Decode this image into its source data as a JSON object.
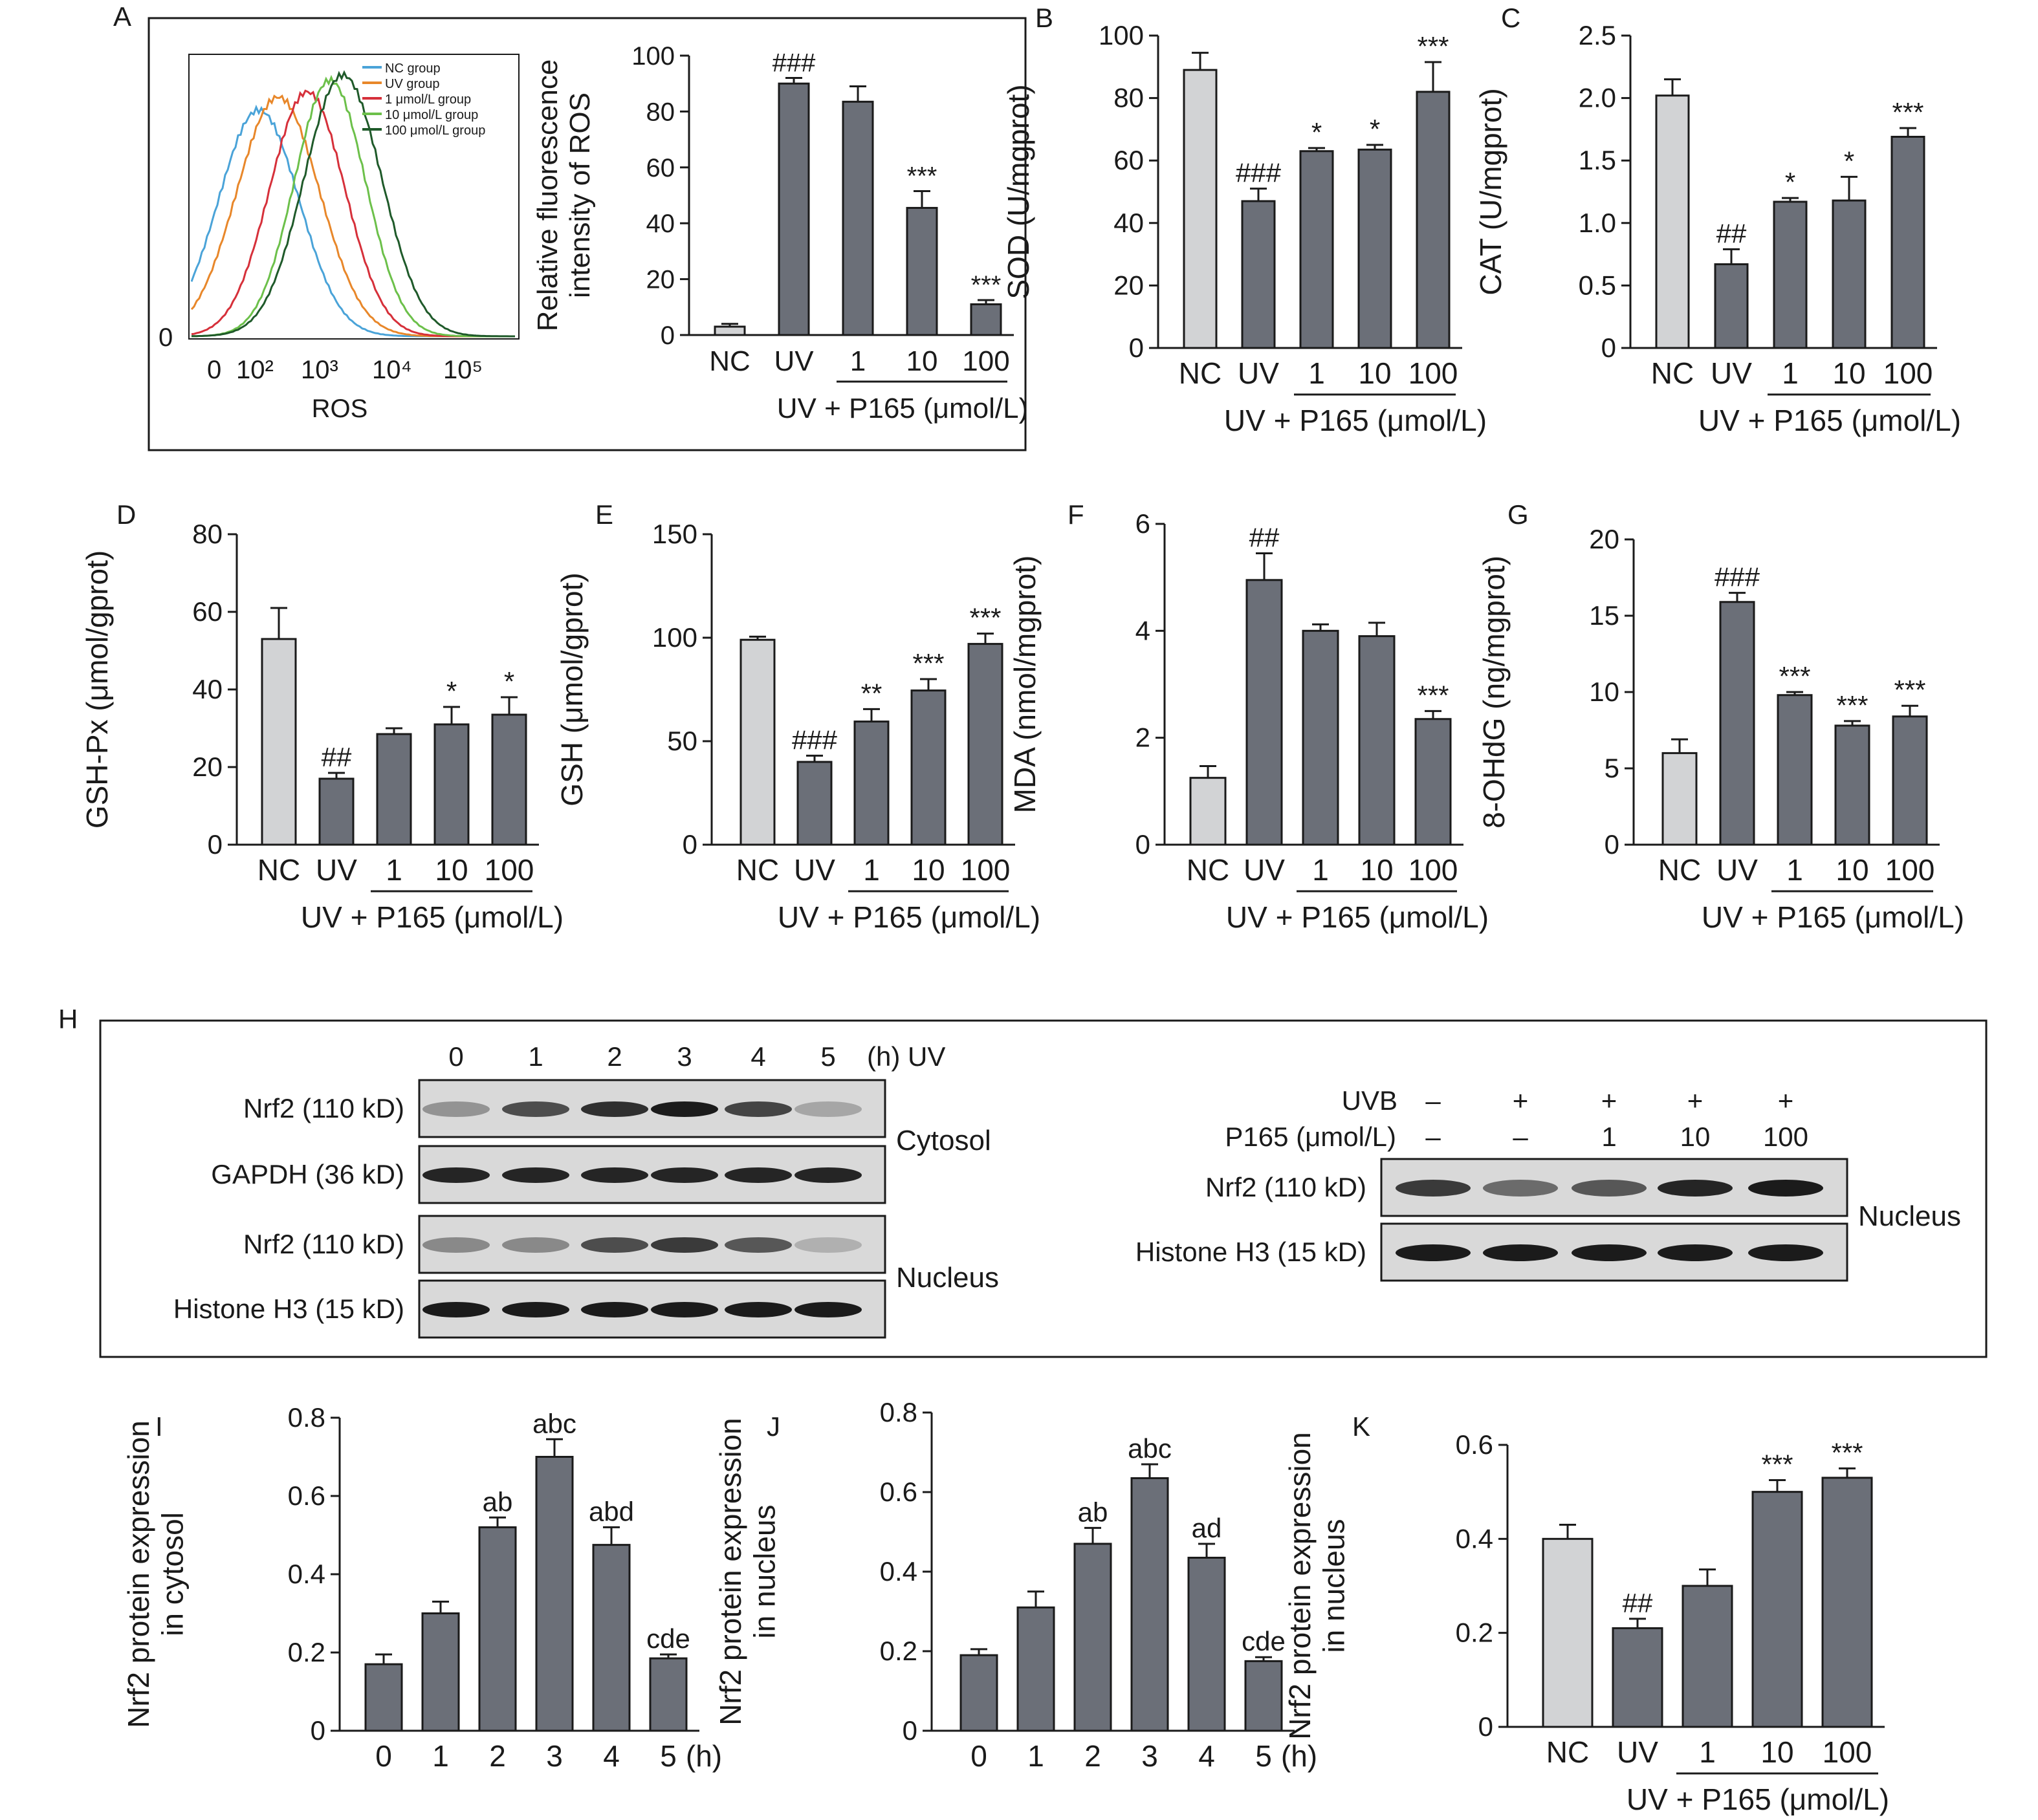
{
  "colors": {
    "bar_dark": "#6b6f78",
    "bar_light": "#d2d3d5",
    "axis": "#1a1a1a",
    "nc_line": "#4aa3d8",
    "uv_line": "#e8872a",
    "low_line": "#d6303a",
    "mid_line": "#6cc04a",
    "high_line": "#1f5a2a"
  },
  "panel_A": {
    "letter": "A",
    "histogram": {
      "legend": [
        "NC group",
        "UV group",
        "1 μmol/L group",
        "10 μmol/L group",
        "100 μmol/L group"
      ],
      "xlabel": "ROS",
      "xticks": [
        "0",
        "10²",
        "10³",
        "10⁴",
        "10⁵"
      ],
      "yzero": "0"
    }
  },
  "group_label": "UV + P165 (μmol/L)",
  "western": {
    "letter": "H",
    "left": {
      "lanes": [
        "0",
        "1",
        "2",
        "3",
        "4",
        "5"
      ],
      "lane_unit": "(h) UV",
      "rows": [
        "Nrf2 (110 kD)",
        "GAPDH (36 kD)",
        "Nrf2 (110 kD)",
        "Histone H3 (15 kD)"
      ],
      "compartments": [
        "Cytosol",
        "Nucleus"
      ]
    },
    "right": {
      "uvb_label": "UVB",
      "uvb": [
        "–",
        "+",
        "+",
        "+",
        "+"
      ],
      "p165_label": "P165 (μmol/L)",
      "p165": [
        "–",
        "–",
        "1",
        "10",
        "100"
      ],
      "rows": [
        "Nrf2 (110 kD)",
        "Histone H3 (15 kD)"
      ],
      "compartment": "Nucleus"
    }
  },
  "chart_data": [
    {
      "id": "A-bar",
      "type": "bar",
      "letter": "",
      "categories": [
        "NC",
        "UV",
        "1",
        "10",
        "100"
      ],
      "values": [
        3,
        90,
        83.5,
        45.5,
        11
      ],
      "errors": [
        1,
        2,
        5.5,
        6,
        1.5
      ],
      "annotations": [
        "",
        "###",
        "",
        "***",
        "***"
      ],
      "ylabel": [
        "Relative fluorescence",
        "intensity of ROS"
      ],
      "ylim": [
        0,
        100
      ],
      "yticks": [
        0,
        20,
        40,
        60,
        80,
        100
      ],
      "light_first": true,
      "group_label": "UV + P165 (μmol/L)"
    },
    {
      "id": "B",
      "type": "bar",
      "letter": "B",
      "categories": [
        "NC",
        "UV",
        "1",
        "10",
        "100"
      ],
      "values": [
        89,
        47,
        63,
        63.5,
        82
      ],
      "errors": [
        5.5,
        4,
        1,
        1.5,
        9.5
      ],
      "annotations": [
        "",
        "###",
        "*",
        "*",
        "***"
      ],
      "ylabel": [
        "SOD (U/mgprot)"
      ],
      "ylim": [
        0,
        100
      ],
      "yticks": [
        0,
        20,
        40,
        60,
        80,
        100
      ],
      "light_first": true,
      "group_label": "UV + P165 (μmol/L)"
    },
    {
      "id": "C",
      "type": "bar",
      "letter": "C",
      "categories": [
        "NC",
        "UV",
        "1",
        "10",
        "100"
      ],
      "values": [
        2.02,
        0.67,
        1.17,
        1.18,
        1.69
      ],
      "errors": [
        0.13,
        0.12,
        0.03,
        0.19,
        0.07
      ],
      "annotations": [
        "",
        "##",
        "*",
        "*",
        "***"
      ],
      "ylabel": [
        "CAT (U/mgprot)"
      ],
      "ylim": [
        0,
        2.5
      ],
      "yticks": [
        "0",
        "0.5",
        "1.0",
        "1.5",
        "2.0",
        "2.5"
      ],
      "light_first": true,
      "group_label": "UV + P165 (μmol/L)"
    },
    {
      "id": "D",
      "type": "bar",
      "letter": "D",
      "categories": [
        "NC",
        "UV",
        "1",
        "10",
        "100"
      ],
      "values": [
        53,
        17,
        28.5,
        31,
        33.5
      ],
      "errors": [
        8,
        1.5,
        1.5,
        4.5,
        4.5
      ],
      "annotations": [
        "",
        "##",
        "",
        "*",
        "*"
      ],
      "ylabel": [
        "GSH-Px (μmol/gprot)"
      ],
      "ylim": [
        0,
        80
      ],
      "yticks": [
        0,
        20,
        40,
        60,
        80
      ],
      "light_first": true,
      "group_label": "UV + P165 (μmol/L)"
    },
    {
      "id": "E",
      "type": "bar",
      "letter": "E",
      "categories": [
        "NC",
        "UV",
        "1",
        "10",
        "100"
      ],
      "values": [
        99,
        40,
        59.5,
        74.5,
        97
      ],
      "errors": [
        1.5,
        3,
        6,
        5.5,
        5
      ],
      "annotations": [
        "",
        "###",
        "**",
        "***",
        "***"
      ],
      "ylabel": [
        "GSH (μmol/gprot)"
      ],
      "ylim": [
        0,
        150
      ],
      "yticks": [
        0,
        50,
        100,
        150
      ],
      "light_first": true,
      "group_label": "UV + P165 (μmol/L)"
    },
    {
      "id": "F",
      "type": "bar",
      "letter": "F",
      "categories": [
        "NC",
        "UV",
        "1",
        "10",
        "100"
      ],
      "values": [
        1.25,
        4.95,
        4.0,
        3.9,
        2.35
      ],
      "errors": [
        0.22,
        0.5,
        0.12,
        0.25,
        0.15
      ],
      "annotations": [
        "",
        "##",
        "",
        "",
        "***"
      ],
      "ylabel": [
        "MDA (nmol/mgprot)"
      ],
      "ylim": [
        0,
        6
      ],
      "yticks": [
        0,
        2,
        4,
        6
      ],
      "light_first": true,
      "group_label": "UV + P165 (μmol/L)"
    },
    {
      "id": "G",
      "type": "bar",
      "letter": "G",
      "categories": [
        "NC",
        "UV",
        "1",
        "10",
        "100"
      ],
      "values": [
        6,
        15.9,
        9.8,
        7.8,
        8.4
      ],
      "errors": [
        0.9,
        0.6,
        0.2,
        0.3,
        0.7
      ],
      "annotations": [
        "",
        "###",
        "***",
        "***",
        "***"
      ],
      "ylabel": [
        "8-OHdG (ng/mgprot)"
      ],
      "ylim": [
        0,
        20
      ],
      "yticks": [
        0,
        5,
        10,
        15,
        20
      ],
      "light_first": true,
      "group_label": "UV + P165 (μmol/L)"
    },
    {
      "id": "I",
      "type": "bar",
      "letter": "I",
      "categories": [
        "0",
        "1",
        "2",
        "3",
        "4",
        "5"
      ],
      "values": [
        0.17,
        0.3,
        0.52,
        0.7,
        0.475,
        0.185
      ],
      "errors": [
        0.025,
        0.03,
        0.025,
        0.045,
        0.045,
        0.01
      ],
      "annotations": [
        "",
        "",
        "ab",
        "abc",
        "abd",
        "cde"
      ],
      "ylabel": [
        "Nrf2 protein expression",
        "in cytosol"
      ],
      "ylim": [
        0,
        0.8
      ],
      "yticks": [
        "0",
        "0.2",
        "0.4",
        "0.6",
        "0.8"
      ],
      "light_first": false,
      "xunit": "(h)"
    },
    {
      "id": "J",
      "type": "bar",
      "letter": "J",
      "categories": [
        "0",
        "1",
        "2",
        "3",
        "4",
        "5"
      ],
      "values": [
        0.19,
        0.31,
        0.47,
        0.635,
        0.435,
        0.175
      ],
      "errors": [
        0.015,
        0.04,
        0.04,
        0.035,
        0.035,
        0.01
      ],
      "annotations": [
        "",
        "",
        "ab",
        "abc",
        "ad",
        "cde"
      ],
      "ylabel": [
        "Nrf2 protein expression",
        "in nucleus"
      ],
      "ylim": [
        0,
        0.8
      ],
      "yticks": [
        "0",
        "0.2",
        "0.4",
        "0.6",
        "0.8"
      ],
      "light_first": false,
      "xunit": "(h)"
    },
    {
      "id": "K",
      "type": "bar",
      "letter": "K",
      "categories": [
        "NC",
        "UV",
        "1",
        "10",
        "100"
      ],
      "values": [
        0.4,
        0.21,
        0.3,
        0.5,
        0.53
      ],
      "errors": [
        0.03,
        0.02,
        0.035,
        0.025,
        0.02
      ],
      "annotations": [
        "",
        "##",
        "",
        "***",
        "***"
      ],
      "ylabel": [
        "Nrf2 protein expression",
        "in nucleus"
      ],
      "ylim": [
        0,
        0.6
      ],
      "yticks": [
        "0",
        "0.2",
        "0.4",
        "0.6"
      ],
      "light_first": true,
      "group_label": "UV + P165 (μmol/L)"
    }
  ]
}
